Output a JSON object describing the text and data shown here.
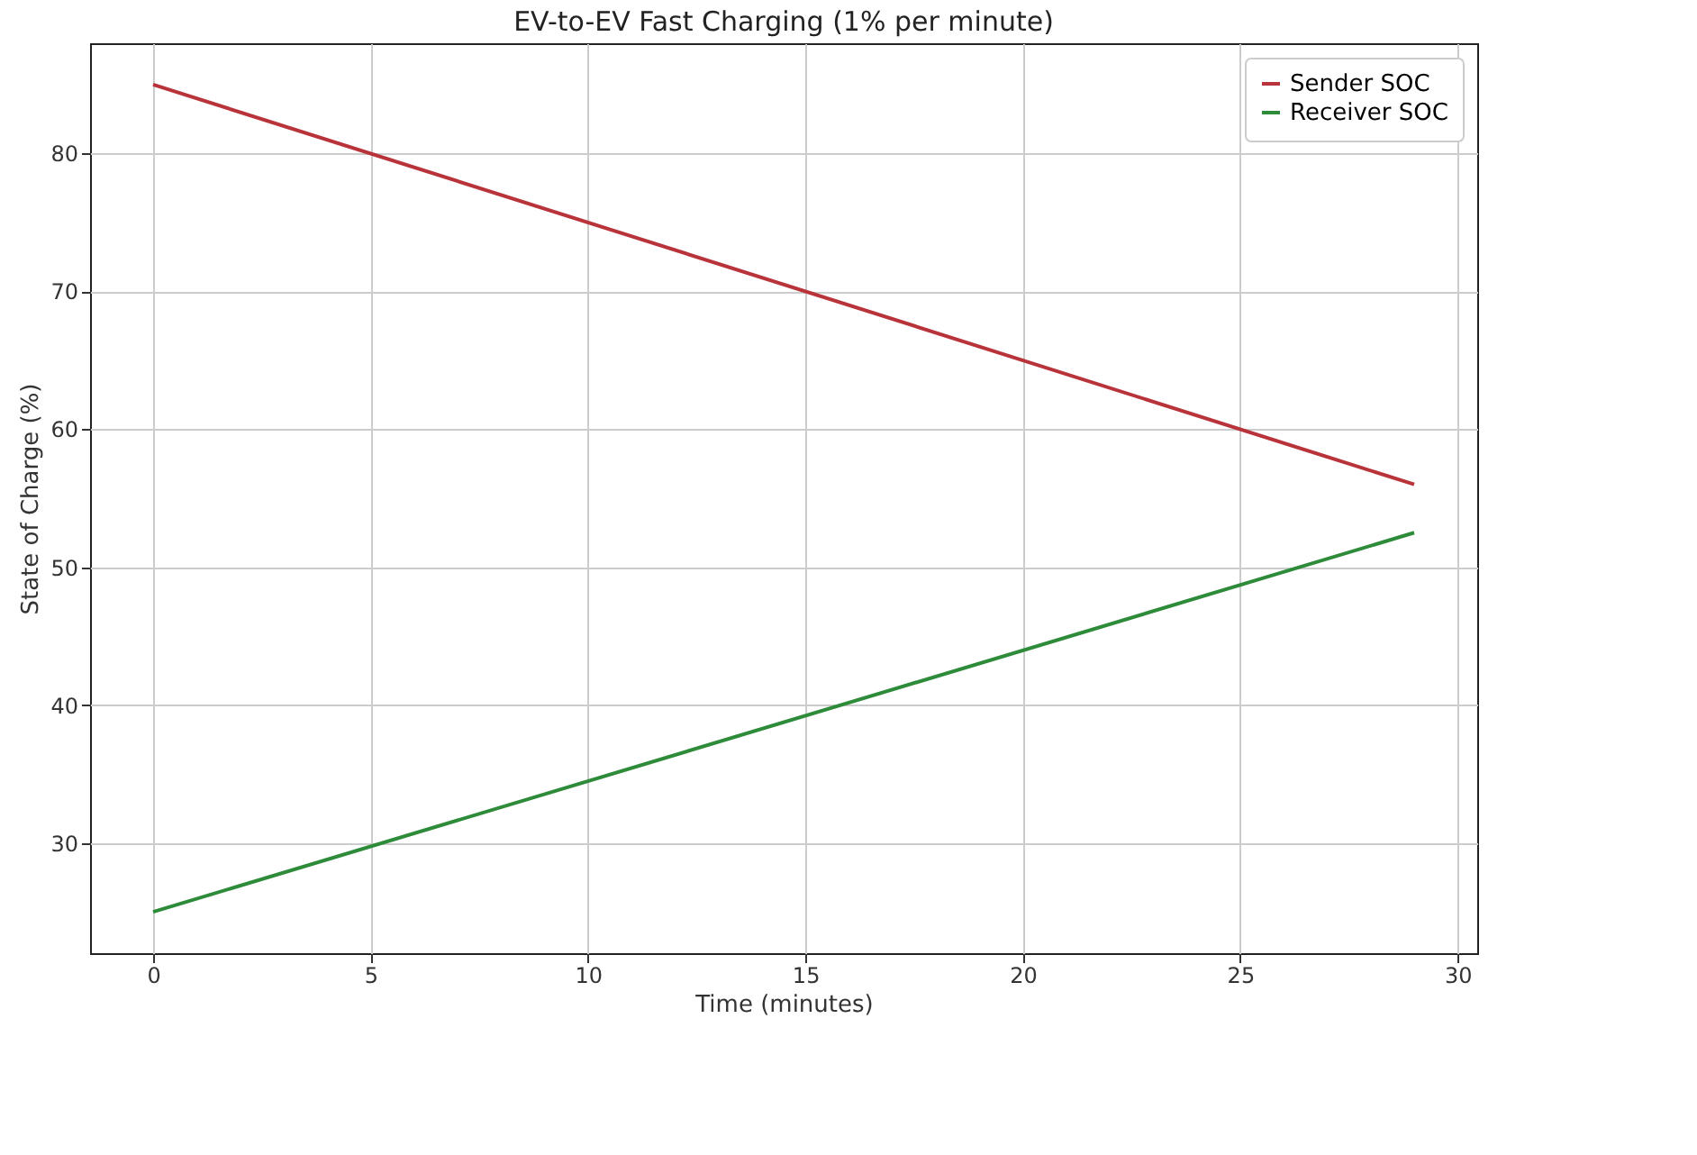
{
  "chart_data": {
    "type": "line",
    "title": "EV-to-EV Fast Charging (1% per minute)",
    "xlabel": "Time (minutes)",
    "ylabel": "State of Charge (%)",
    "x": [
      0,
      29
    ],
    "series": [
      {
        "name": "Sender SOC",
        "color": "#b8333a",
        "values": [
          85,
          56
        ]
      },
      {
        "name": "Receiver SOC",
        "color": "#2e8b3a",
        "values": [
          25,
          52.5
        ]
      }
    ],
    "xlim": [
      -1.45,
      30.45
    ],
    "xticks": [
      0,
      5,
      10,
      15,
      20,
      25,
      30
    ],
    "ylim": [
      22,
      88
    ],
    "yticks": [
      30,
      40,
      50,
      60,
      70,
      80
    ],
    "grid": true,
    "legend": "top right"
  }
}
